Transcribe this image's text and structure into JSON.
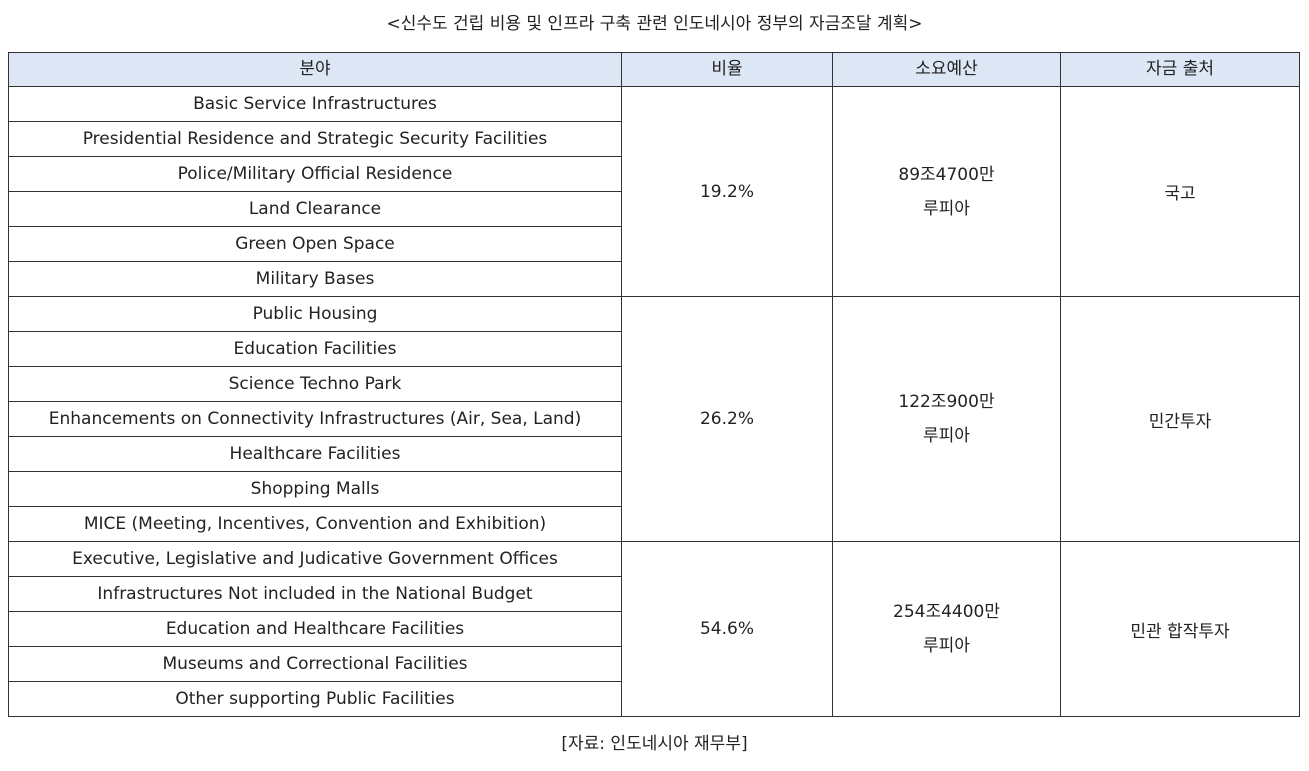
{
  "title": "<신수도 건립 비용 및 인프라 구축 관련 인도네시아 정부의 자금조달 계획>",
  "table": {
    "headers": {
      "field": "분야",
      "ratio": "비율",
      "budget": "소요예산",
      "source": "자금 출처"
    },
    "groups": [
      {
        "fields": [
          "Basic Service Infrastructures",
          "Presidential Residence and Strategic Security Facilities",
          "Police/Military Official Residence",
          "Land Clearance",
          "Green Open Space",
          "Military Bases"
        ],
        "ratio": "19.2%",
        "budget_amount": "89조4700만",
        "budget_unit": "루피아",
        "funding_source": "국고"
      },
      {
        "fields": [
          "Public Housing",
          "Education Facilities",
          "Science Techno Park",
          "Enhancements on Connectivity Infrastructures (Air, Sea, Land)",
          "Healthcare Facilities",
          "Shopping Malls",
          "MICE (Meeting, Incentives, Convention and Exhibition)"
        ],
        "ratio": "26.2%",
        "budget_amount": "122조900만",
        "budget_unit": "루피아",
        "funding_source": "민간투자"
      },
      {
        "fields": [
          "Executive, Legislative and Judicative Government Offices",
          "Infrastructures Not included in the National Budget",
          "Education and Healthcare Facilities",
          "Museums and Correctional Facilities",
          "Other supporting Public Facilities"
        ],
        "ratio": "54.6%",
        "budget_amount": "254조4400만",
        "budget_unit": "루피아",
        "funding_source": "민관 합작투자"
      }
    ]
  },
  "source_note": "[자료: 인도네시아 재무부]"
}
